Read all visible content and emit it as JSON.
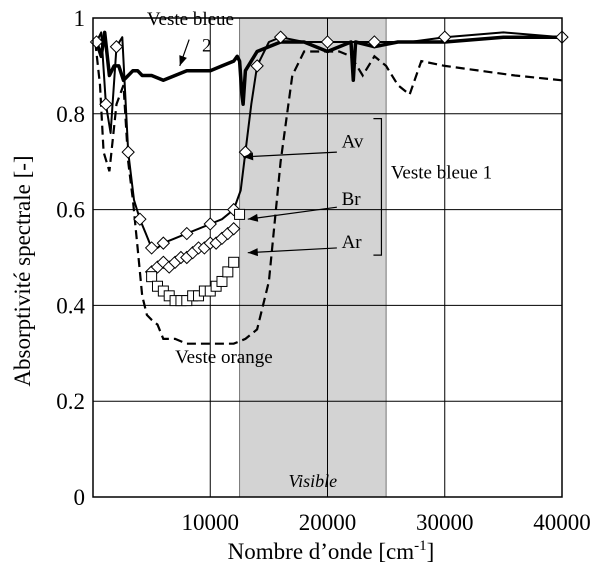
{
  "chart_data": {
    "type": "line",
    "xlabel": "Nombre d’onde [cm",
    "xlabel_sup": "-1",
    "xlabel_end": "]",
    "ylabel": "Absorptivité spectrale [-]",
    "xlim": [
      0,
      40000
    ],
    "ylim": [
      0,
      1
    ],
    "xticks": [
      10000,
      20000,
      30000,
      40000
    ],
    "yticks": [
      0,
      0.2,
      0.4,
      0.6,
      0.8,
      1
    ],
    "xtick_labels": [
      "10000",
      "20000",
      "30000",
      "40000"
    ],
    "ytick_labels": [
      "0",
      "0.2",
      "0.4",
      "0.6",
      "0.8",
      "1"
    ],
    "grid": true,
    "visible_band": {
      "from": 12500,
      "to": 25000,
      "label": "Visible",
      "color": "#d3d3d3"
    },
    "series": [
      {
        "style": "solid-thick",
        "x": [
          300,
          700,
          1000,
          1400,
          1800,
          2200,
          2600,
          3000,
          3400,
          3800,
          4200,
          4600,
          5000,
          6000,
          8000,
          10000,
          11000,
          12000,
          12300,
          12500,
          12700,
          12800,
          13000,
          14000,
          16000,
          18000,
          20000,
          22000,
          22200,
          22400,
          24000,
          26000,
          30000,
          35000,
          40000
        ],
        "y": [
          0.95,
          0.92,
          0.97,
          0.88,
          0.9,
          0.9,
          0.87,
          0.88,
          0.89,
          0.89,
          0.88,
          0.88,
          0.88,
          0.87,
          0.89,
          0.89,
          0.9,
          0.91,
          0.92,
          0.91,
          0.84,
          0.82,
          0.89,
          0.93,
          0.95,
          0.95,
          0.93,
          0.95,
          0.87,
          0.95,
          0.94,
          0.95,
          0.95,
          0.96,
          0.96
        ]
      },
      {
        "name": "Av",
        "style": "solid-markers-diamond",
        "x": [
          300,
          700,
          1100,
          1500,
          2000,
          2500,
          3000,
          3500,
          4000,
          4500,
          5000,
          5500,
          6000,
          7000,
          8000,
          9000,
          10000,
          11000,
          12000,
          12600,
          13000,
          13500,
          14000,
          15000,
          16000,
          18000,
          20000,
          22000,
          24000,
          27000,
          30000,
          35000,
          40000
        ],
        "y": [
          0.95,
          0.97,
          0.82,
          0.76,
          0.94,
          0.96,
          0.72,
          0.62,
          0.58,
          0.55,
          0.52,
          0.52,
          0.53,
          0.54,
          0.55,
          0.56,
          0.57,
          0.58,
          0.6,
          0.64,
          0.72,
          0.82,
          0.9,
          0.95,
          0.96,
          0.95,
          0.95,
          0.95,
          0.95,
          0.95,
          0.96,
          0.97,
          0.96
        ]
      },
      {
        "name": "Br",
        "style": "markers-diamond",
        "x": [
          5000,
          5500,
          6000,
          6500,
          7000,
          7500,
          8000,
          8500,
          9000,
          9500,
          10000,
          10500,
          11000,
          11500,
          12000
        ],
        "y": [
          0.47,
          0.48,
          0.49,
          0.48,
          0.49,
          0.5,
          0.5,
          0.51,
          0.52,
          0.52,
          0.53,
          0.53,
          0.54,
          0.55,
          0.56
        ]
      },
      {
        "name": "Ar",
        "style": "markers-square",
        "x": [
          5000,
          5500,
          6000,
          6500,
          7000,
          7500,
          8000,
          8500,
          9000,
          9500,
          10000,
          10500,
          11000,
          11500,
          12000,
          12500
        ],
        "y": [
          0.46,
          0.44,
          0.43,
          0.42,
          0.41,
          0.41,
          0.41,
          0.42,
          0.42,
          0.43,
          0.43,
          0.44,
          0.45,
          0.47,
          0.49,
          0.59
        ]
      },
      {
        "name": "Veste orange",
        "style": "dashed",
        "x": [
          200,
          600,
          900,
          1400,
          2000,
          2600,
          3000,
          3400,
          3800,
          4200,
          4600,
          5000,
          5500,
          6000,
          7000,
          8000,
          10000,
          12000,
          13000,
          14000,
          15000,
          16000,
          17000,
          18000,
          19000,
          20000,
          21000,
          22000,
          23000,
          24000,
          25000,
          26000,
          27000,
          28000,
          30000,
          33000,
          36000,
          40000
        ],
        "y": [
          0.95,
          0.86,
          0.72,
          0.68,
          0.82,
          0.86,
          0.7,
          0.62,
          0.52,
          0.42,
          0.38,
          0.37,
          0.36,
          0.33,
          0.33,
          0.32,
          0.32,
          0.32,
          0.33,
          0.35,
          0.45,
          0.7,
          0.88,
          0.93,
          0.93,
          0.93,
          0.93,
          0.92,
          0.88,
          0.92,
          0.9,
          0.86,
          0.84,
          0.91,
          0.9,
          0.89,
          0.88,
          0.87
        ]
      }
    ],
    "annotations": [
      {
        "text": "Veste bleue",
        "x": 4600,
        "y": 0.985
      },
      {
        "text": "2",
        "x": 9300,
        "y": 0.93
      },
      {
        "text": "Av",
        "x": 21200,
        "y": 0.73
      },
      {
        "text": "Br",
        "x": 21200,
        "y": 0.61
      },
      {
        "text": "Ar",
        "x": 21200,
        "y": 0.52
      },
      {
        "text": "Veste bleue 1",
        "x": 25400,
        "y": 0.665
      },
      {
        "text": "Veste orange",
        "x": 7000,
        "y": 0.28
      }
    ],
    "arrows": [
      {
        "from": [
          20800,
          0.72
        ],
        "to": [
          12800,
          0.71
        ]
      },
      {
        "from": [
          20800,
          0.605
        ],
        "to": [
          13200,
          0.58
        ]
      },
      {
        "from": [
          20800,
          0.52
        ],
        "to": [
          13200,
          0.51
        ]
      },
      {
        "from": [
          8200,
          0.955
        ],
        "to": [
          7400,
          0.9
        ]
      }
    ]
  }
}
